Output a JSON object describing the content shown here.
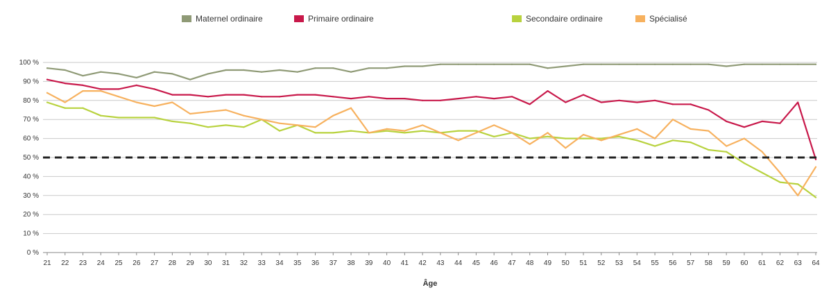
{
  "chart_data": {
    "type": "line",
    "xlabel": "Âge",
    "ylabel": "",
    "ylim": [
      0,
      100
    ],
    "grid": true,
    "legend_position": "top",
    "x": [
      21,
      22,
      23,
      24,
      25,
      26,
      27,
      28,
      29,
      30,
      31,
      32,
      33,
      34,
      35,
      36,
      37,
      38,
      39,
      40,
      41,
      42,
      43,
      44,
      45,
      46,
      47,
      48,
      49,
      50,
      51,
      52,
      53,
      54,
      55,
      56,
      57,
      58,
      59,
      60,
      61,
      62,
      63,
      64
    ],
    "y_ticks": [
      "0 %",
      "10 %",
      "20 %",
      "30 %",
      "40 %",
      "50 %",
      "60 %",
      "70 %",
      "80 %",
      "90 %",
      "100 %"
    ],
    "reference_line": {
      "value": 50,
      "style": "dashed",
      "color": "#222222"
    },
    "series": [
      {
        "name": "Maternel ordinaire",
        "color": "#8f9a76",
        "values": [
          97,
          96,
          93,
          95,
          94,
          92,
          95,
          94,
          91,
          94,
          96,
          96,
          95,
          96,
          95,
          97,
          97,
          95,
          97,
          97,
          98,
          98,
          99,
          99,
          99,
          99,
          99,
          99,
          97,
          98,
          99,
          99,
          99,
          99,
          99,
          99,
          99,
          99,
          98,
          99,
          99,
          99,
          99,
          99
        ]
      },
      {
        "name": "Primaire ordinaire",
        "color": "#c8184a",
        "values": [
          91,
          89,
          88,
          86,
          86,
          88,
          86,
          83,
          83,
          82,
          83,
          83,
          82,
          82,
          83,
          83,
          82,
          81,
          82,
          81,
          81,
          80,
          80,
          81,
          82,
          81,
          82,
          78,
          85,
          79,
          83,
          79,
          80,
          79,
          80,
          78,
          78,
          75,
          69,
          66,
          69,
          68,
          79,
          49
        ]
      },
      {
        "name": "Secondaire ordinaire",
        "color": "#b8d23e",
        "values": [
          79,
          76,
          76,
          72,
          71,
          71,
          71,
          69,
          68,
          66,
          67,
          66,
          70,
          64,
          67,
          63,
          63,
          64,
          63,
          64,
          63,
          64,
          63,
          64,
          64,
          61,
          63,
          60,
          61,
          60,
          60,
          60,
          61,
          59,
          56,
          59,
          58,
          54,
          53,
          47,
          42,
          37,
          36,
          29
        ]
      },
      {
        "name": "Spécialisé",
        "color": "#f7b15e",
        "values": [
          84,
          79,
          85,
          85,
          82,
          79,
          77,
          79,
          73,
          74,
          75,
          72,
          70,
          68,
          67,
          66,
          72,
          76,
          63,
          65,
          64,
          67,
          63,
          59,
          63,
          67,
          63,
          57,
          63,
          55,
          62,
          59,
          62,
          65,
          60,
          70,
          65,
          64,
          56,
          60,
          53,
          42,
          30,
          45
        ]
      }
    ]
  }
}
